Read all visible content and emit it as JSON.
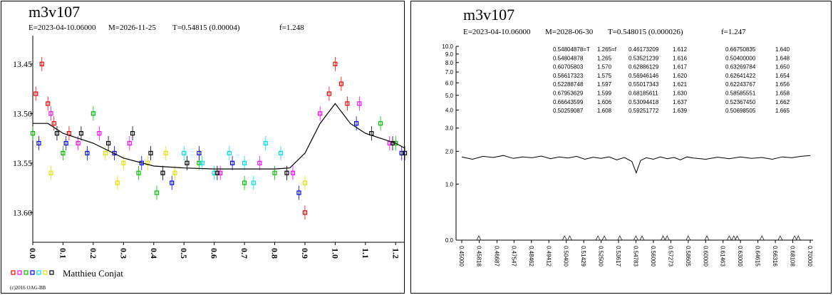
{
  "chart_data": [
    {
      "type": "scatter",
      "title": "m3v107",
      "subtitle_parts": [
        "E=2023-04-10.06000",
        "M=2026-11-25",
        "T=0.54815 (0.00004)",
        "f=1.248"
      ],
      "legend_text": "Matthieu Conjat",
      "footer": "(c)2016 OAG-BB",
      "xlim": [
        0,
        1.23
      ],
      "ylim": [
        13.43,
        13.63
      ],
      "y_inverted": true,
      "xticks": [
        {
          "value": 0,
          "label": "0.0"
        },
        0.1,
        0.2,
        0.3,
        0.4,
        0.5,
        0.6,
        0.7,
        0.8,
        0.9,
        {
          "value": 1,
          "label": "1.0"
        },
        1.1,
        1.2
      ],
      "yticks": [
        13.45,
        {
          "value": 13.5,
          "label": "13.50"
        },
        13.55,
        {
          "value": 13.6,
          "label": "13.60"
        }
      ],
      "series": [
        {
          "color": "#ff0000",
          "x": [
            0.01,
            0.03,
            0.05,
            0.07,
            0.98,
            1.0,
            1.02,
            1.04,
            0.9,
            0.12
          ],
          "values": [
            13.48,
            13.45,
            13.49,
            13.51,
            13.48,
            13.45,
            13.47,
            13.49,
            13.6,
            13.52
          ]
        },
        {
          "color": "#ff00ff",
          "x": [
            0.06,
            0.15,
            0.22,
            0.32,
            0.62,
            0.75,
            0.86,
            0.95,
            1.08,
            1.18
          ],
          "values": [
            13.5,
            13.53,
            13.52,
            13.53,
            13.56,
            13.55,
            13.56,
            13.5,
            13.49,
            13.53
          ]
        },
        {
          "color": "#00c000",
          "x": [
            0.1,
            0.2,
            0.35,
            0.41,
            0.55,
            0.7,
            0.8,
            1.15,
            1.2,
            0.0
          ],
          "values": [
            13.54,
            13.5,
            13.56,
            13.58,
            13.55,
            13.57,
            13.56,
            13.51,
            13.53,
            13.52
          ]
        },
        {
          "color": "#0000ff",
          "x": [
            0.02,
            0.11,
            0.18,
            0.27,
            0.36,
            0.46,
            0.55,
            0.66,
            0.88,
            1.07,
            1.22
          ],
          "values": [
            13.53,
            13.53,
            13.54,
            13.54,
            13.55,
            13.57,
            13.54,
            13.55,
            13.58,
            13.51,
            13.54
          ]
        },
        {
          "color": "#00e0e0",
          "x": [
            0.5,
            0.56,
            0.6,
            0.65,
            0.7,
            0.77,
            0.82,
            0.73
          ],
          "values": [
            13.54,
            13.55,
            13.56,
            13.54,
            13.55,
            13.53,
            13.54,
            13.57
          ]
        },
        {
          "color": "#e0e000",
          "x": [
            0.06,
            0.24,
            0.28,
            0.3,
            0.38,
            0.44,
            0.9,
            0.47
          ],
          "values": [
            13.56,
            13.54,
            13.57,
            13.55,
            13.55,
            13.54,
            13.57,
            13.56
          ]
        },
        {
          "color": "#000000",
          "x": [
            0.08,
            0.16,
            0.25,
            0.33,
            0.39,
            0.43,
            0.51,
            0.61,
            0.84,
            1.12,
            1.19,
            1.23
          ],
          "values": [
            13.52,
            13.52,
            13.53,
            13.52,
            13.54,
            13.56,
            13.55,
            13.56,
            13.56,
            13.52,
            13.53,
            13.54
          ]
        },
        {
          "color": "#000000",
          "mode": "line",
          "x": [
            0,
            0.05,
            0.1,
            0.15,
            0.2,
            0.3,
            0.4,
            0.5,
            0.6,
            0.7,
            0.8,
            0.85,
            0.9,
            0.95,
            1.0,
            1.05,
            1.1,
            1.15,
            1.2,
            1.23
          ],
          "values": [
            13.51,
            13.51,
            13.52,
            13.525,
            13.53,
            13.545,
            13.553,
            13.555,
            13.556,
            13.556,
            13.556,
            13.555,
            13.54,
            13.51,
            13.49,
            13.51,
            13.52,
            13.525,
            13.53,
            13.535
          ]
        }
      ]
    },
    {
      "type": "line",
      "title": "m3v107",
      "subtitle_parts": [
        "E=2023-04-10.06000",
        "M=2028-06-30",
        "T=0.548015 (0.000026)",
        "f=1.247"
      ],
      "xscale": "reciprocal",
      "yscale": "log1p",
      "color": "#000000",
      "xlim": [
        0.45,
        0.7
      ],
      "ylim": [
        0,
        10
      ],
      "xticks": [
        {
          "value": 0.45,
          "label": "0.45000"
        },
        {
          "value": 0.45818,
          "label": "0.45818"
        },
        {
          "value": 0.46687,
          "label": "0.46687"
        },
        {
          "value": 0.47547,
          "label": "0.47547"
        },
        {
          "value": 0.48462,
          "label": "0.48462"
        },
        {
          "value": 0.49412,
          "label": "0.49412"
        },
        {
          "value": 0.504,
          "label": "0.50400"
        },
        {
          "value": 0.51429,
          "label": "0.51429"
        },
        {
          "value": 0.525,
          "label": "0.52500"
        },
        {
          "value": 0.53617,
          "label": "0.53617"
        },
        {
          "value": 0.54783,
          "label": "0.54783"
        },
        {
          "value": 0.56,
          "label": "0.56000"
        },
        {
          "value": 0.57273,
          "label": "0.57273"
        },
        {
          "value": 0.58605,
          "label": "0.58605"
        },
        {
          "value": 0.6,
          "label": "0.60000"
        },
        {
          "value": 0.61463,
          "label": "0.61463"
        },
        {
          "value": 0.63,
          "label": "0.63000"
        },
        {
          "value": 0.64615,
          "label": "0.64615"
        },
        {
          "value": 0.66316,
          "label": "0.66316"
        },
        {
          "value": 0.68108,
          "label": "0.68108"
        },
        {
          "value": 0.7,
          "label": "0.70000"
        }
      ],
      "yticks": [
        {
          "value": 0,
          "label": "0.0"
        },
        {
          "value": 1,
          "label": "1.0"
        },
        {
          "value": 2,
          "label": "2.0"
        },
        {
          "value": 3,
          "label": "3.0"
        },
        {
          "value": 4,
          "label": "4.0"
        },
        {
          "value": 5,
          "label": "5.0"
        },
        {
          "value": 6,
          "label": "6.0"
        },
        {
          "value": 7,
          "label": "7.0"
        },
        {
          "value": 8,
          "label": "8.0"
        },
        {
          "value": 9,
          "label": "9.0"
        },
        {
          "value": 10,
          "label": "10.0"
        }
      ],
      "x": [
        0.45,
        0.455,
        0.46,
        0.465,
        0.47,
        0.475,
        0.48,
        0.485,
        0.49,
        0.495,
        0.5,
        0.505,
        0.51,
        0.515,
        0.52,
        0.525,
        0.53,
        0.535,
        0.54,
        0.545,
        0.548,
        0.551,
        0.555,
        0.56,
        0.565,
        0.57,
        0.575,
        0.58,
        0.585,
        0.59,
        0.6,
        0.61,
        0.62,
        0.63,
        0.64,
        0.65,
        0.66,
        0.67,
        0.68,
        0.69,
        0.7
      ],
      "values": [
        1.8,
        1.72,
        1.82,
        1.78,
        1.85,
        1.75,
        1.8,
        1.77,
        1.83,
        1.74,
        1.8,
        1.76,
        1.82,
        1.72,
        1.79,
        1.75,
        1.8,
        1.7,
        1.78,
        1.65,
        1.3,
        1.68,
        1.77,
        1.72,
        1.8,
        1.74,
        1.78,
        1.7,
        1.8,
        1.76,
        1.72,
        1.79,
        1.74,
        1.8,
        1.75,
        1.78,
        1.72,
        1.8,
        1.77,
        1.82,
        1.85
      ],
      "marker_x": [
        0.458,
        0.503,
        0.506,
        0.523,
        0.527,
        0.537,
        0.5478,
        0.552,
        0.567,
        0.57,
        0.586,
        0.601,
        0.62,
        0.624,
        0.627,
        0.65,
        0.668,
        0.683,
        0.687
      ],
      "table": [
        [
          "0.54804878=T",
          "1.265=f",
          "0.46173209",
          "1.612",
          "0.66750835",
          "1.640"
        ],
        [
          "0.54804878",
          "1.265",
          "0.53521239",
          "1.616",
          "0.50400000",
          "1.648"
        ],
        [
          "0.60705803",
          "1.570",
          "0.62886129",
          "1.617",
          "0.63269784",
          "1.650"
        ],
        [
          "0.56617323",
          "1.575",
          "0.56946146",
          "1.620",
          "0.62641422",
          "1.654"
        ],
        [
          "0.52288748",
          "1.597",
          "0.55017343",
          "1.621",
          "0.62243767",
          "1.656"
        ],
        [
          "0.67953629",
          "1.599",
          "0.68185611",
          "1.630",
          "0.58585551",
          "1.658"
        ],
        [
          "0.66643599",
          "1.606",
          "0.53094418",
          "1.637",
          "0.52367450",
          "1.662"
        ],
        [
          "0.50259087",
          "1.608",
          "0.59251772",
          "1.639",
          "0.50698505",
          "1.665"
        ]
      ]
    }
  ]
}
